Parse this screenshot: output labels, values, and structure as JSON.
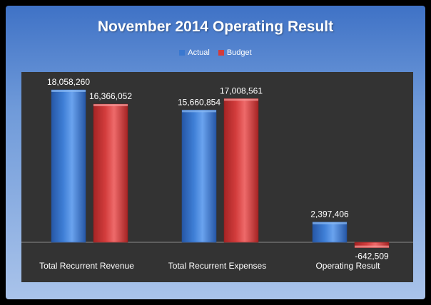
{
  "chart_data": {
    "type": "bar",
    "title": "November 2014 Operating Result",
    "categories": [
      "Total Recurrent Revenue",
      "Total Recurrent Expenses",
      "Operating Result"
    ],
    "series": [
      {
        "name": "Actual",
        "values": [
          18058260,
          15660854,
          2397406
        ],
        "labels": [
          "18,058,260",
          "15,660,854",
          "2,397,406"
        ]
      },
      {
        "name": "Budget",
        "values": [
          16366052,
          17008561,
          -642509
        ],
        "labels": [
          "16,366,052",
          "17,008,561",
          "-642,509"
        ]
      }
    ],
    "legend_position": "top",
    "grid": false
  },
  "colors": {
    "actual": "#3a78d0",
    "budget": "#d23c3c",
    "plot_background": "#333333"
  }
}
